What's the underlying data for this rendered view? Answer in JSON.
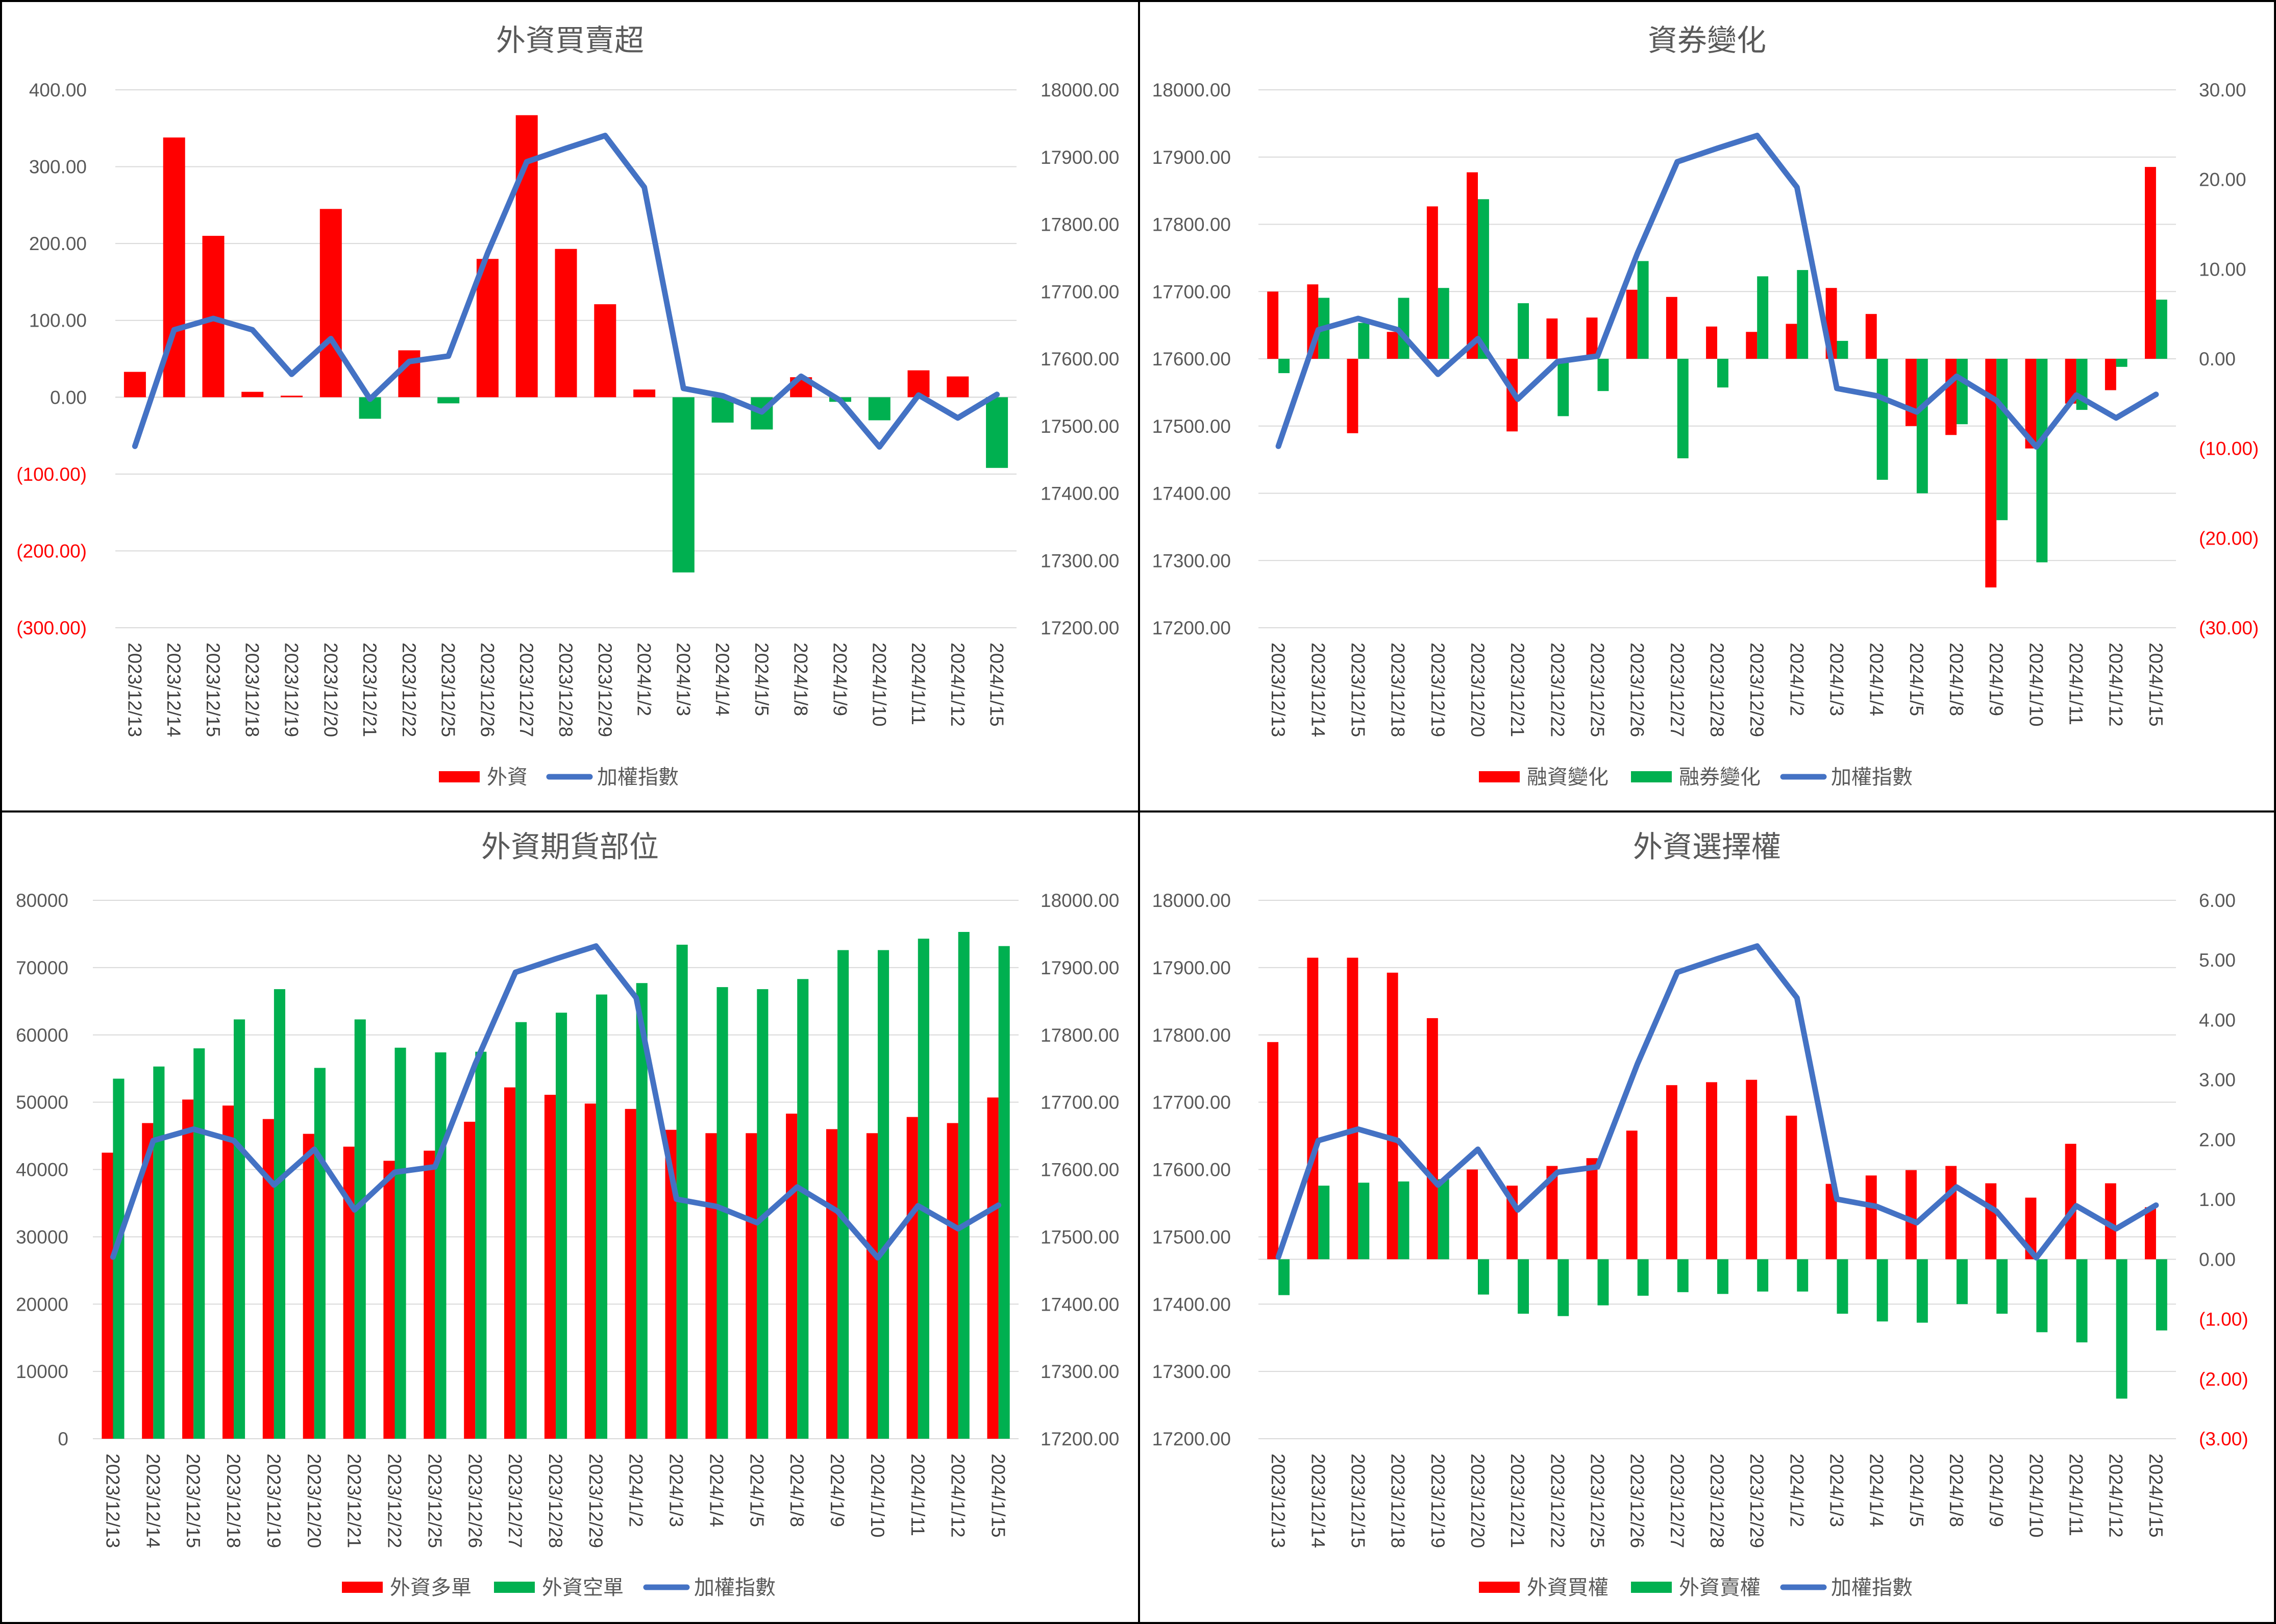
{
  "colors": {
    "red": "#ff0000",
    "green": "#00b050",
    "blue": "#4472c4"
  },
  "chart_data": [
    {
      "type": "bar",
      "title": "外資買賣超",
      "categories": [
        "2023/12/13",
        "2023/12/14",
        "2023/12/15",
        "2023/12/18",
        "2023/12/19",
        "2023/12/20",
        "2023/12/21",
        "2023/12/22",
        "2023/12/25",
        "2023/12/26",
        "2023/12/27",
        "2023/12/28",
        "2023/12/29",
        "2024/1/2",
        "2024/1/3",
        "2024/1/4",
        "2024/1/5",
        "2024/1/8",
        "2024/1/9",
        "2024/1/10",
        "2024/1/11",
        "2024/1/12",
        "2024/1/15"
      ],
      "series": [
        {
          "name": "外資",
          "axis": "left",
          "color": "sign",
          "values": [
            33,
            338,
            210,
            7,
            2,
            245,
            -28,
            61,
            -8,
            180,
            367,
            193,
            121,
            10,
            -228,
            -33,
            -42,
            26,
            -6,
            -30,
            35,
            27,
            -92
          ]
        },
        {
          "name": "加權指數",
          "axis": "right",
          "type": "line",
          "values": [
            17470,
            17643,
            17660,
            17643,
            17577,
            17630,
            17540,
            17596,
            17604,
            17757,
            17893,
            17913,
            17932,
            17855,
            17556,
            17545,
            17521,
            17574,
            17538,
            17469,
            17546,
            17512,
            17547
          ]
        }
      ],
      "yTicks": [
        "400.00",
        "300.00",
        "200.00",
        "100.00",
        "0.00",
        "(100.00)",
        "(200.00)",
        "(300.00)"
      ],
      "y2Ticks": [
        "18000.00",
        "17900.00",
        "17800.00",
        "17700.00",
        "17600.00",
        "17500.00",
        "17400.00",
        "17300.00",
        "17200.00"
      ],
      "ylim": [
        -300,
        400
      ],
      "y2lim": [
        17200,
        18000
      ]
    },
    {
      "type": "bar",
      "title": "資券變化",
      "categories": [
        "2023/12/13",
        "2023/12/14",
        "2023/12/15",
        "2023/12/18",
        "2023/12/19",
        "2023/12/20",
        "2023/12/21",
        "2023/12/22",
        "2023/12/25",
        "2023/12/26",
        "2023/12/27",
        "2023/12/28",
        "2023/12/29",
        "2024/1/2",
        "2024/1/3",
        "2024/1/4",
        "2024/1/5",
        "2024/1/8",
        "2024/1/9",
        "2024/1/10",
        "2024/1/11",
        "2024/1/12",
        "2024/1/15"
      ],
      "series": [
        {
          "name": "融資變化",
          "axis": "right",
          "color": "#ff0000",
          "values": [
            7.5,
            8.3,
            -8.3,
            3.0,
            17.0,
            20.8,
            -8.1,
            4.5,
            4.6,
            7.7,
            6.9,
            3.6,
            3.0,
            3.9,
            7.9,
            5.0,
            -7.5,
            -8.5,
            -25.5,
            -10.0,
            -5.0,
            -3.5,
            21.4
          ]
        },
        {
          "name": "融券變化",
          "axis": "right",
          "color": "#00b050",
          "values": [
            -1.6,
            6.8,
            4.0,
            6.8,
            7.9,
            17.8,
            6.2,
            -6.4,
            -3.6,
            10.9,
            -11.1,
            -3.2,
            9.2,
            9.9,
            2.0,
            -13.5,
            -15.0,
            -7.3,
            -18.0,
            -22.7,
            -5.7,
            -0.9,
            6.6
          ]
        },
        {
          "name": "加權指數",
          "axis": "left",
          "type": "line",
          "values": [
            17470,
            17643,
            17660,
            17643,
            17577,
            17630,
            17540,
            17596,
            17604,
            17757,
            17893,
            17913,
            17932,
            17855,
            17556,
            17545,
            17521,
            17574,
            17538,
            17469,
            17546,
            17512,
            17547
          ]
        }
      ],
      "yTicks": [
        "18000.00",
        "17900.00",
        "17800.00",
        "17700.00",
        "17600.00",
        "17500.00",
        "17400.00",
        "17300.00",
        "17200.00"
      ],
      "y2Ticks": [
        "30.00",
        "20.00",
        "10.00",
        "0.00",
        "(10.00)",
        "(20.00)",
        "(30.00)"
      ],
      "ylim": [
        17200,
        18000
      ],
      "y2lim": [
        -30,
        30
      ]
    },
    {
      "type": "bar",
      "title": "外資期貨部位",
      "categories": [
        "2023/12/13",
        "2023/12/14",
        "2023/12/15",
        "2023/12/18",
        "2023/12/19",
        "2023/12/20",
        "2023/12/21",
        "2023/12/22",
        "2023/12/25",
        "2023/12/26",
        "2023/12/27",
        "2023/12/28",
        "2023/12/29",
        "2024/1/2",
        "2024/1/3",
        "2024/1/4",
        "2024/1/5",
        "2024/1/8",
        "2024/1/9",
        "2024/1/10",
        "2024/1/11",
        "2024/1/12",
        "2024/1/15"
      ],
      "series": [
        {
          "name": "外資多單",
          "axis": "left",
          "color": "#ff0000",
          "values": [
            42500,
            46900,
            50400,
            49500,
            47500,
            45300,
            43400,
            41300,
            42800,
            47100,
            52200,
            51100,
            49800,
            49000,
            45900,
            45400,
            45400,
            48300,
            46000,
            45400,
            47800,
            46900,
            50700
          ]
        },
        {
          "name": "外資空單",
          "axis": "left",
          "color": "#00b050",
          "values": [
            53500,
            55300,
            58000,
            62300,
            66800,
            55100,
            62300,
            58100,
            57400,
            57500,
            61900,
            63300,
            66000,
            67700,
            73400,
            67100,
            66800,
            68300,
            72600,
            72600,
            74300,
            75300,
            73200
          ]
        },
        {
          "name": "加權指數",
          "axis": "right",
          "type": "line",
          "values": [
            17470,
            17643,
            17660,
            17643,
            17577,
            17630,
            17540,
            17596,
            17604,
            17757,
            17893,
            17913,
            17932,
            17855,
            17556,
            17545,
            17521,
            17574,
            17538,
            17469,
            17546,
            17512,
            17547
          ]
        }
      ],
      "yTicks": [
        "80000",
        "70000",
        "60000",
        "50000",
        "40000",
        "30000",
        "20000",
        "10000",
        "0"
      ],
      "y2Ticks": [
        "18000.00",
        "17900.00",
        "17800.00",
        "17700.00",
        "17600.00",
        "17500.00",
        "17400.00",
        "17300.00",
        "17200.00"
      ],
      "ylim": [
        0,
        80000
      ],
      "y2lim": [
        17200,
        18000
      ]
    },
    {
      "type": "bar",
      "title": "外資選擇權",
      "categories": [
        "2023/12/13",
        "2023/12/14",
        "2023/12/15",
        "2023/12/18",
        "2023/12/19",
        "2023/12/20",
        "2023/12/21",
        "2023/12/22",
        "2023/12/25",
        "2023/12/26",
        "2023/12/27",
        "2023/12/28",
        "2023/12/29",
        "2024/1/2",
        "2024/1/3",
        "2024/1/4",
        "2024/1/5",
        "2024/1/8",
        "2024/1/9",
        "2024/1/10",
        "2024/1/11",
        "2024/1/12",
        "2024/1/15"
      ],
      "series": [
        {
          "name": "外資買權",
          "axis": "right",
          "color": "#ff0000",
          "values": [
            3.63,
            5.04,
            5.04,
            4.79,
            4.03,
            1.5,
            1.23,
            1.56,
            1.69,
            2.15,
            2.91,
            2.96,
            3.0,
            2.4,
            1.26,
            1.4,
            1.49,
            1.56,
            1.27,
            1.03,
            1.93,
            1.27,
            0.87
          ]
        },
        {
          "name": "外資賣權",
          "axis": "right",
          "color": "#00b050",
          "values": [
            -0.6,
            1.23,
            1.28,
            1.3,
            1.34,
            -0.59,
            -0.91,
            -0.95,
            -0.77,
            -0.61,
            -0.55,
            -0.58,
            -0.54,
            -0.54,
            -0.91,
            -1.04,
            -1.06,
            -0.75,
            -0.91,
            -1.22,
            -1.39,
            -2.33,
            -1.19
          ]
        },
        {
          "name": "加權指數",
          "axis": "left",
          "type": "line",
          "values": [
            17470,
            17643,
            17660,
            17643,
            17577,
            17630,
            17540,
            17596,
            17604,
            17757,
            17893,
            17913,
            17932,
            17855,
            17556,
            17545,
            17521,
            17574,
            17538,
            17469,
            17546,
            17512,
            17547
          ]
        }
      ],
      "yTicks": [
        "18000.00",
        "17900.00",
        "17800.00",
        "17700.00",
        "17600.00",
        "17500.00",
        "17400.00",
        "17300.00",
        "17200.00"
      ],
      "y2Ticks": [
        "6.00",
        "5.00",
        "4.00",
        "3.00",
        "2.00",
        "1.00",
        "0.00",
        "(1.00)",
        "(2.00)",
        "(3.00)"
      ],
      "ylim": [
        17200,
        18000
      ],
      "y2lim": [
        -3,
        6
      ]
    }
  ]
}
